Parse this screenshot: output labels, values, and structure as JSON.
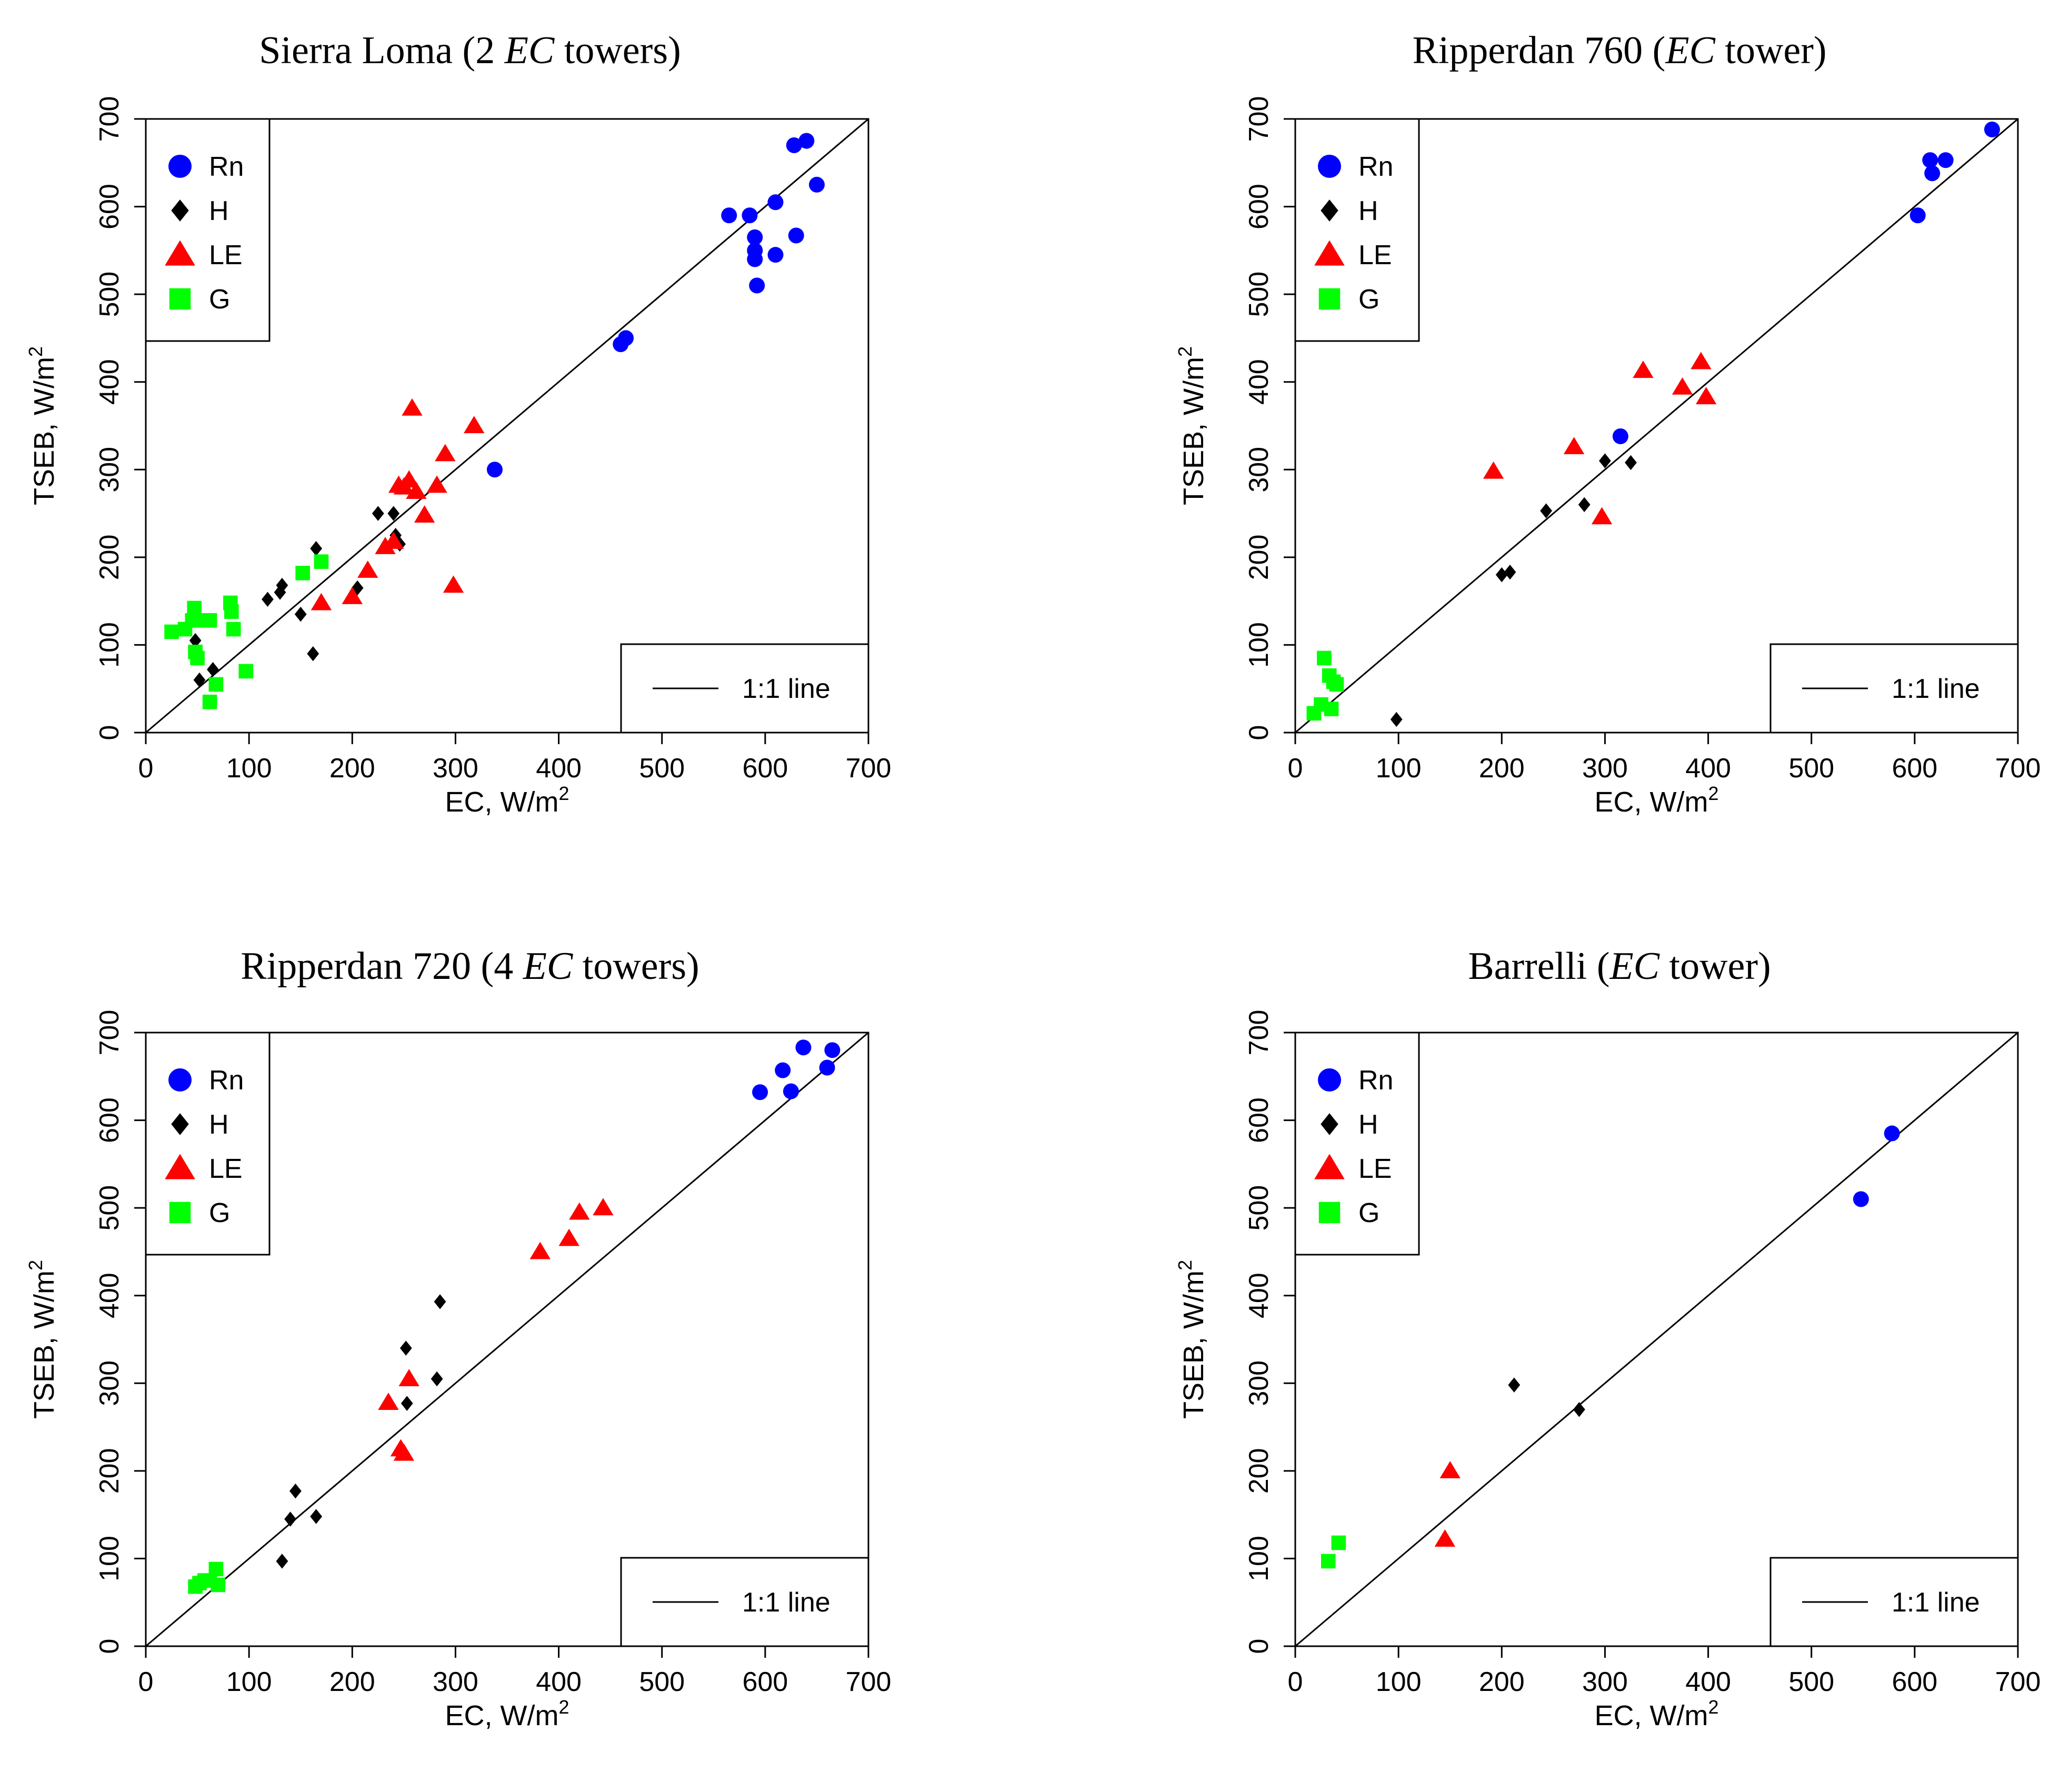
{
  "figure": {
    "series_styles": {
      "Rn": {
        "color": "#0000ff",
        "marker": "circle"
      },
      "H": {
        "color": "#000000",
        "marker": "diamond"
      },
      "LE": {
        "color": "#ff0000",
        "marker": "triangle"
      },
      "G": {
        "color": "#00ff00",
        "marker": "square"
      }
    },
    "axis_labels": {
      "x": "EC, W/m",
      "y": "TSEB, W/m",
      "unit_superscript": "2"
    },
    "ref_line_label": "1:1 line"
  },
  "chart_data": [
    {
      "type": "scatter",
      "title": {
        "pre": "Sierra Loma (2 ",
        "em": "EC",
        "post": " towers)"
      },
      "xlim": [
        0,
        700
      ],
      "ylim": [
        0,
        700
      ],
      "xticks": [
        0,
        100,
        200,
        300,
        400,
        500,
        600,
        700
      ],
      "yticks": [
        0,
        100,
        200,
        300,
        400,
        500,
        600,
        700
      ],
      "grid": false,
      "legend": "top-left",
      "ref_line_legend": "bottom-right",
      "series": [
        {
          "name": "Rn",
          "points": [
            [
              565,
              590
            ],
            [
              585,
              590
            ],
            [
              590,
              565
            ],
            [
              590,
              550
            ],
            [
              590,
              540
            ],
            [
              592,
              510
            ],
            [
              610,
              605
            ],
            [
              610,
              545
            ],
            [
              630,
              567
            ],
            [
              628,
              670
            ],
            [
              640,
              675
            ],
            [
              650,
              625
            ],
            [
              460,
              443
            ],
            [
              465,
              450
            ],
            [
              338,
              300
            ]
          ]
        },
        {
          "name": "H",
          "points": [
            [
              48,
              105
            ],
            [
              52,
              60
            ],
            [
              65,
              72
            ],
            [
              118,
              152
            ],
            [
              130,
              160
            ],
            [
              132,
              168
            ],
            [
              150,
              135
            ],
            [
              162,
              90
            ],
            [
              165,
              210
            ],
            [
              205,
              165
            ],
            [
              225,
              250
            ],
            [
              240,
              250
            ],
            [
              242,
              225
            ],
            [
              246,
              215
            ]
          ]
        },
        {
          "name": "LE",
          "points": [
            [
              170,
              148
            ],
            [
              200,
              155
            ],
            [
              215,
              185
            ],
            [
              232,
              212
            ],
            [
              240,
              218
            ],
            [
              245,
              282
            ],
            [
              250,
              280
            ],
            [
              255,
              288
            ],
            [
              258,
              370
            ],
            [
              262,
              275
            ],
            [
              270,
              248
            ],
            [
              282,
              282
            ],
            [
              290,
              318
            ],
            [
              298,
              168
            ],
            [
              318,
              350
            ]
          ]
        },
        {
          "name": "G",
          "points": [
            [
              25,
              115
            ],
            [
              38,
              118
            ],
            [
              45,
              128
            ],
            [
              47,
              142
            ],
            [
              48,
              92
            ],
            [
              50,
              85
            ],
            [
              58,
              128
            ],
            [
              62,
              128
            ],
            [
              62,
              35
            ],
            [
              68,
              55
            ],
            [
              82,
              148
            ],
            [
              83,
              138
            ],
            [
              85,
              118
            ],
            [
              97,
              70
            ],
            [
              152,
              182
            ],
            [
              170,
              195
            ]
          ]
        }
      ]
    },
    {
      "type": "scatter",
      "title": {
        "pre": "Ripperdan 760 (",
        "em": "EC",
        "post": " tower)"
      },
      "xlim": [
        0,
        700
      ],
      "ylim": [
        0,
        700
      ],
      "xticks": [
        0,
        100,
        200,
        300,
        400,
        500,
        600,
        700
      ],
      "yticks": [
        0,
        100,
        200,
        300,
        400,
        500,
        600,
        700
      ],
      "grid": false,
      "legend": "top-left",
      "ref_line_legend": "bottom-right",
      "series": [
        {
          "name": "Rn",
          "points": [
            [
              603,
              590
            ],
            [
              615,
              653
            ],
            [
              617,
              638
            ],
            [
              630,
              653
            ],
            [
              675,
              688
            ],
            [
              315,
              338
            ]
          ]
        },
        {
          "name": "H",
          "points": [
            [
              98,
              15
            ],
            [
              200,
              180
            ],
            [
              208,
              183
            ],
            [
              243,
              253
            ],
            [
              280,
              260
            ],
            [
              300,
              310
            ],
            [
              325,
              308
            ]
          ]
        },
        {
          "name": "LE",
          "points": [
            [
              192,
              298
            ],
            [
              270,
              326
            ],
            [
              297,
              246
            ],
            [
              337,
              413
            ],
            [
              375,
              394
            ],
            [
              393,
              423
            ],
            [
              398,
              383
            ]
          ]
        },
        {
          "name": "G",
          "points": [
            [
              18,
              22
            ],
            [
              25,
              32
            ],
            [
              28,
              85
            ],
            [
              33,
              65
            ],
            [
              35,
              27
            ],
            [
              37,
              58
            ],
            [
              40,
              55
            ]
          ]
        }
      ]
    },
    {
      "type": "scatter",
      "title": {
        "pre": "Ripperdan 720 (4 ",
        "em": "EC",
        "post": " towers)"
      },
      "xlim": [
        0,
        700
      ],
      "ylim": [
        0,
        700
      ],
      "xticks": [
        0,
        100,
        200,
        300,
        400,
        500,
        600,
        700
      ],
      "yticks": [
        0,
        100,
        200,
        300,
        400,
        500,
        600,
        700
      ],
      "grid": false,
      "legend": "top-left",
      "ref_line_legend": "bottom-right",
      "series": [
        {
          "name": "Rn",
          "points": [
            [
              595,
              632
            ],
            [
              617,
              657
            ],
            [
              625,
              633
            ],
            [
              637,
              683
            ],
            [
              660,
              660
            ],
            [
              665,
              680
            ]
          ]
        },
        {
          "name": "H",
          "points": [
            [
              132,
              97
            ],
            [
              140,
              145
            ],
            [
              145,
              177
            ],
            [
              165,
              148
            ],
            [
              252,
              340
            ],
            [
              253,
              277
            ],
            [
              282,
              305
            ],
            [
              285,
              393
            ]
          ]
        },
        {
          "name": "LE",
          "points": [
            [
              235,
              278
            ],
            [
              247,
              225
            ],
            [
              250,
              220
            ],
            [
              255,
              305
            ],
            [
              382,
              450
            ],
            [
              410,
              465
            ],
            [
              420,
              495
            ],
            [
              443,
              500
            ]
          ]
        },
        {
          "name": "G",
          "points": [
            [
              48,
              68
            ],
            [
              52,
              72
            ],
            [
              57,
              75
            ],
            [
              62,
              75
            ],
            [
              68,
              88
            ],
            [
              70,
              70
            ]
          ]
        }
      ]
    },
    {
      "type": "scatter",
      "title": {
        "pre": "Barrelli (",
        "em": "EC",
        "post": " tower)"
      },
      "xlim": [
        0,
        700
      ],
      "ylim": [
        0,
        700
      ],
      "xticks": [
        0,
        100,
        200,
        300,
        400,
        500,
        600,
        700
      ],
      "yticks": [
        0,
        100,
        200,
        300,
        400,
        500,
        600,
        700
      ],
      "grid": false,
      "legend": "top-left",
      "ref_line_legend": "bottom-right",
      "series": [
        {
          "name": "Rn",
          "points": [
            [
              548,
              510
            ],
            [
              578,
              585
            ]
          ]
        },
        {
          "name": "H",
          "points": [
            [
              212,
              298
            ],
            [
              275,
              270
            ]
          ]
        },
        {
          "name": "LE",
          "points": [
            [
              145,
              122
            ],
            [
              150,
              200
            ]
          ]
        },
        {
          "name": "G",
          "points": [
            [
              32,
              97
            ],
            [
              42,
              118
            ]
          ]
        }
      ]
    }
  ]
}
